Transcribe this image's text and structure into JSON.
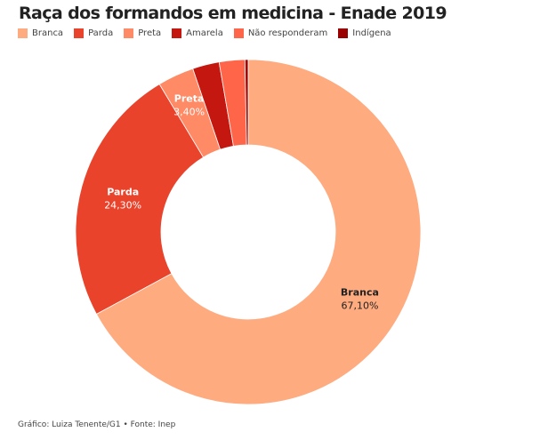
{
  "chart_data": {
    "type": "pie",
    "donut": true,
    "title": "Raça dos formandos em medicina - Enade 2019",
    "legend_position": "top-left",
    "categories": [
      "Branca",
      "Parda",
      "Preta",
      "Amarela",
      "Não responderam",
      "Indígena"
    ],
    "values": [
      67.1,
      24.3,
      3.4,
      2.5,
      2.4,
      0.3
    ],
    "colors": [
      "#ffab80",
      "#e9432c",
      "#ff8a66",
      "#c4170f",
      "#ff6649",
      "#9b0000"
    ],
    "data_labels": [
      {
        "name": "Branca",
        "value": "67,10%"
      },
      {
        "name": "Parda",
        "value": "24,30%"
      },
      {
        "name": "Preta",
        "value": "3,40%"
      }
    ]
  },
  "footer": "Gráfico: Luiza Tenente/G1 • Fonte: Inep"
}
